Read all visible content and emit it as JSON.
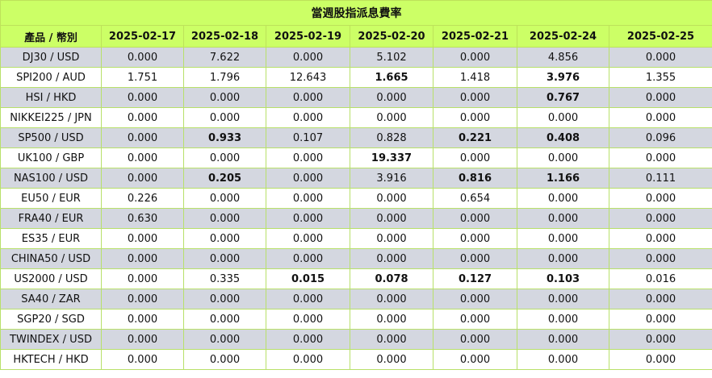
{
  "title": "當週股指派息費率",
  "header": {
    "product": "產品 / 幣別",
    "dates": [
      "2025-02-17",
      "2025-02-18",
      "2025-02-19",
      "2025-02-20",
      "2025-02-21",
      "2025-02-24",
      "2025-02-25"
    ]
  },
  "rows": [
    {
      "product": "DJ30 / USD",
      "values": [
        "0.000",
        "7.622",
        "0.000",
        "5.102",
        "0.000",
        "4.856",
        "0.000"
      ],
      "bold": []
    },
    {
      "product": "SPI200 / AUD",
      "values": [
        "1.751",
        "1.796",
        "12.643",
        "1.665",
        "1.418",
        "3.976",
        "1.355"
      ],
      "bold": [
        3,
        5
      ]
    },
    {
      "product": "HSI / HKD",
      "values": [
        "0.000",
        "0.000",
        "0.000",
        "0.000",
        "0.000",
        "0.767",
        "0.000"
      ],
      "bold": [
        5
      ]
    },
    {
      "product": "NIKKEI225 / JPN",
      "values": [
        "0.000",
        "0.000",
        "0.000",
        "0.000",
        "0.000",
        "0.000",
        "0.000"
      ],
      "bold": []
    },
    {
      "product": "SP500 / USD",
      "values": [
        "0.000",
        "0.933",
        "0.107",
        "0.828",
        "0.221",
        "0.408",
        "0.096"
      ],
      "bold": [
        1,
        4,
        5
      ]
    },
    {
      "product": "UK100 / GBP",
      "values": [
        "0.000",
        "0.000",
        "0.000",
        "19.337",
        "0.000",
        "0.000",
        "0.000"
      ],
      "bold": [
        3
      ]
    },
    {
      "product": "NAS100 / USD",
      "values": [
        "0.000",
        "0.205",
        "0.000",
        "3.916",
        "0.816",
        "1.166",
        "0.111"
      ],
      "bold": [
        1,
        4,
        5
      ]
    },
    {
      "product": "EU50 / EUR",
      "values": [
        "0.226",
        "0.000",
        "0.000",
        "0.000",
        "0.654",
        "0.000",
        "0.000"
      ],
      "bold": []
    },
    {
      "product": "FRA40 / EUR",
      "values": [
        "0.630",
        "0.000",
        "0.000",
        "0.000",
        "0.000",
        "0.000",
        "0.000"
      ],
      "bold": []
    },
    {
      "product": "ES35 / EUR",
      "values": [
        "0.000",
        "0.000",
        "0.000",
        "0.000",
        "0.000",
        "0.000",
        "0.000"
      ],
      "bold": []
    },
    {
      "product": "CHINA50 / USD",
      "values": [
        "0.000",
        "0.000",
        "0.000",
        "0.000",
        "0.000",
        "0.000",
        "0.000"
      ],
      "bold": []
    },
    {
      "product": "US2000 / USD",
      "values": [
        "0.000",
        "0.335",
        "0.015",
        "0.078",
        "0.127",
        "0.103",
        "0.016"
      ],
      "bold": [
        2,
        3,
        4,
        5
      ]
    },
    {
      "product": "SA40 / ZAR",
      "values": [
        "0.000",
        "0.000",
        "0.000",
        "0.000",
        "0.000",
        "0.000",
        "0.000"
      ],
      "bold": []
    },
    {
      "product": "SGP20 / SGD",
      "values": [
        "0.000",
        "0.000",
        "0.000",
        "0.000",
        "0.000",
        "0.000",
        "0.000"
      ],
      "bold": []
    },
    {
      "product": "TWINDEX / USD",
      "values": [
        "0.000",
        "0.000",
        "0.000",
        "0.000",
        "0.000",
        "0.000",
        "0.000"
      ],
      "bold": []
    },
    {
      "product": "HKTECH / HKD",
      "values": [
        "0.000",
        "0.000",
        "0.000",
        "0.000",
        "0.000",
        "0.000",
        "0.000"
      ],
      "bold": []
    }
  ],
  "colors": {
    "header_bg": "#ccff66",
    "row_alt_bg": "#d4d7e0",
    "row_bg": "#ffffff",
    "grid": "#b8e06a"
  }
}
